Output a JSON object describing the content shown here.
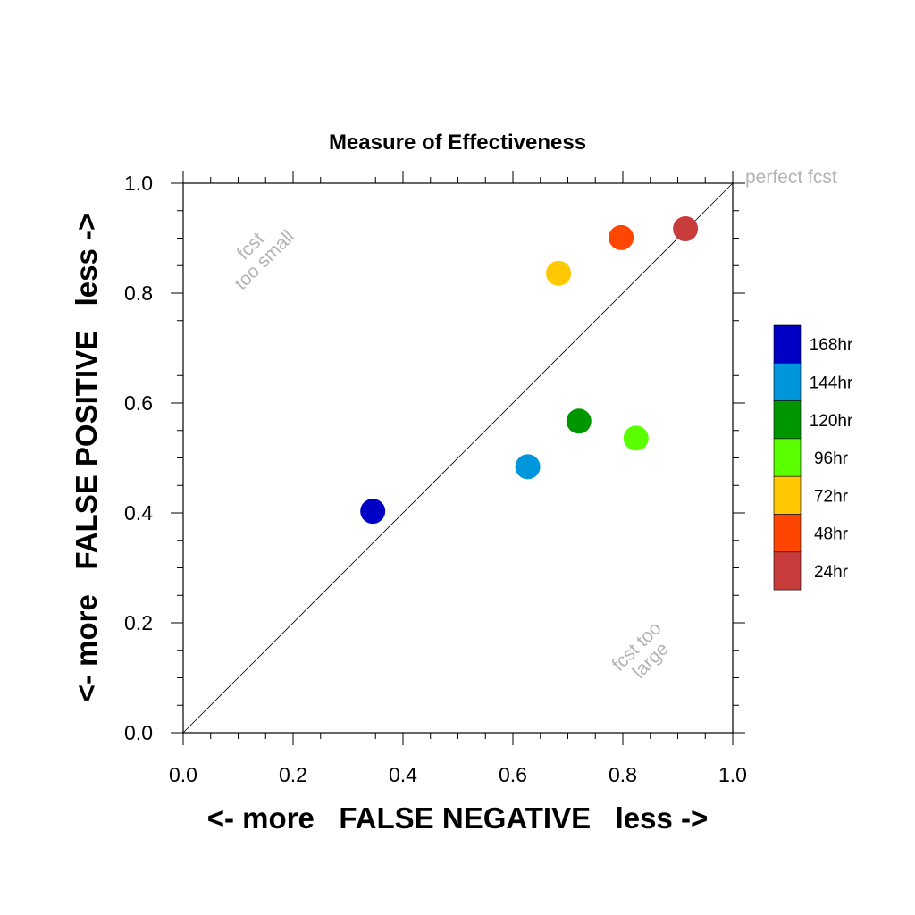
{
  "chart_data": {
    "type": "scatter",
    "title": "Measure of Effectiveness",
    "xlabel": "<- more   FALSE NEGATIVE   less ->",
    "ylabel": "<- more   FALSE POSITIVE   less ->",
    "xlim": [
      0.0,
      1.0
    ],
    "ylim": [
      0.0,
      1.0
    ],
    "x_ticks": [
      "0.0",
      "0.2",
      "0.4",
      "0.6",
      "0.8",
      "1.0"
    ],
    "y_ticks": [
      "0.0",
      "0.2",
      "0.4",
      "0.6",
      "0.8",
      "1.0"
    ],
    "grid": false,
    "reference_line": {
      "from": [
        0,
        0
      ],
      "to": [
        1,
        1
      ]
    },
    "annotations": {
      "perfect": "perfect fcst",
      "small_line1": "fcst",
      "small_line2": "too small",
      "large_line1": "fcst too",
      "large_line2": "large"
    },
    "legend_position": "right",
    "series": [
      {
        "name": "168hr",
        "color": "#0000c4",
        "x": 0.345,
        "y": 0.403
      },
      {
        "name": "144hr",
        "color": "#0096dc",
        "x": 0.627,
        "y": 0.484
      },
      {
        "name": "120hr",
        "color": "#009600",
        "x": 0.72,
        "y": 0.567
      },
      {
        "name": "96hr",
        "color": "#5aff00",
        "x": 0.824,
        "y": 0.536
      },
      {
        "name": "72hr",
        "color": "#ffc800",
        "x": 0.683,
        "y": 0.836
      },
      {
        "name": "48hr",
        "color": "#ff4600",
        "x": 0.797,
        "y": 0.901
      },
      {
        "name": "24hr",
        "color": "#c83c3c",
        "x": 0.914,
        "y": 0.917
      }
    ],
    "legend_order": [
      "168hr",
      "144hr",
      "120hr",
      "96hr",
      "72hr",
      "48hr",
      "24hr"
    ]
  }
}
